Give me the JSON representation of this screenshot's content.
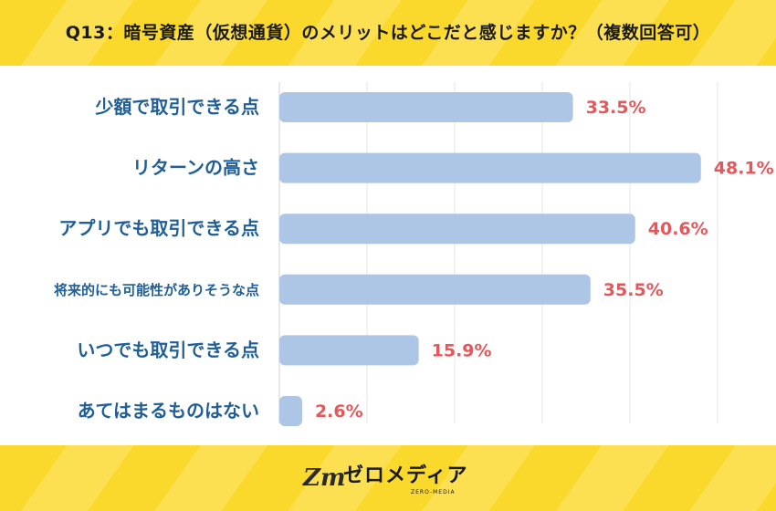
{
  "title": "Q13：暗号資産（仮想通貨）のメリットはどこだと感じますか？（複数回答可）",
  "brand": {
    "logo_mark": "Zm",
    "name": "ゼロメディア",
    "sub": "ZERO-MEDIA"
  },
  "colors": {
    "band": "#fbd92c",
    "bar": "#adc6e6",
    "category_text": "#1f5e96",
    "value_text": "#e4575a",
    "grid": "#e6e6e6"
  },
  "chart_data": {
    "type": "bar",
    "orientation": "horizontal",
    "categories": [
      "少額で取引できる点",
      "リターンの高さ",
      "アプリでも取引できる点",
      "将来的にも可能性がありそうな点",
      "いつでも取引できる点",
      "あてはまるものはない"
    ],
    "values": [
      33.5,
      48.1,
      40.6,
      35.5,
      15.9,
      2.6
    ],
    "value_labels": [
      "33.5%",
      "48.1%",
      "40.6%",
      "35.5%",
      "15.9%",
      "2.6%"
    ],
    "xlim": [
      0,
      50
    ],
    "grid": true
  }
}
